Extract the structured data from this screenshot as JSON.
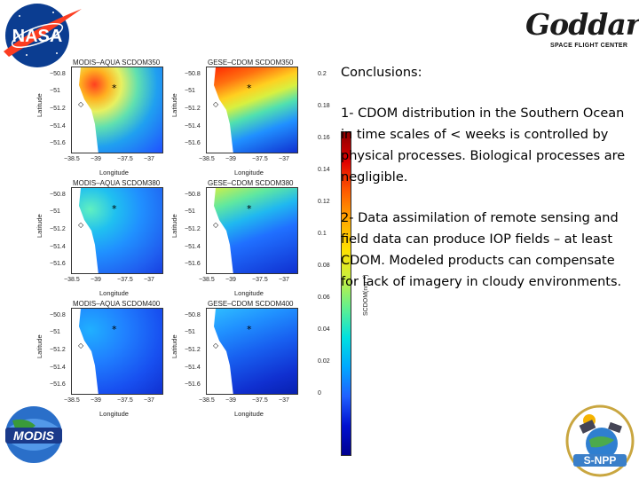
{
  "logos": {
    "nasa": "NASA",
    "goddard_script": "Goddard",
    "goddard_sub": "SPACE FLIGHT CENTER",
    "modis": "MODIS",
    "snpp": "S-NPP"
  },
  "conclusions": {
    "heading": "Conclusions:",
    "points": [
      "1- CDOM distribution in the Southern Ocean in time scales of < weeks is controlled by physical processes. Biological processes are negligible.",
      "2- Data assimilation of remote sensing and field data can produce IOP fields – at least CDOM.  Modeled products can compensate for lack of imagery in cloudy environments."
    ]
  },
  "figure": {
    "panels": [
      {
        "title": "MODIS–AQUA SCDOM350"
      },
      {
        "title": "GESE–CDOM SCDOM350"
      },
      {
        "title": "MODIS–AQUA SCDOM380"
      },
      {
        "title": "GESE–CDOM SCDOM380"
      },
      {
        "title": "MODIS–AQUA SCDOM400"
      },
      {
        "title": "GESE–CDOM SCDOM400"
      }
    ],
    "y_ticks": [
      "−50.8",
      "−51",
      "−51.2",
      "−51.4",
      "−51.6"
    ],
    "x_ticks": [
      "−38.5",
      "−39",
      "−37.5",
      "−37"
    ],
    "x_label": "Longitude",
    "y_label": "Latitude",
    "colorbar_ticks": [
      "0.2",
      "0.18",
      "0.16",
      "0.14",
      "0.12",
      "0.1",
      "0.08",
      "0.06",
      "0.04",
      "0.02",
      "0"
    ],
    "colorbar_label": "SCDOM(nm⁻¹)"
  }
}
